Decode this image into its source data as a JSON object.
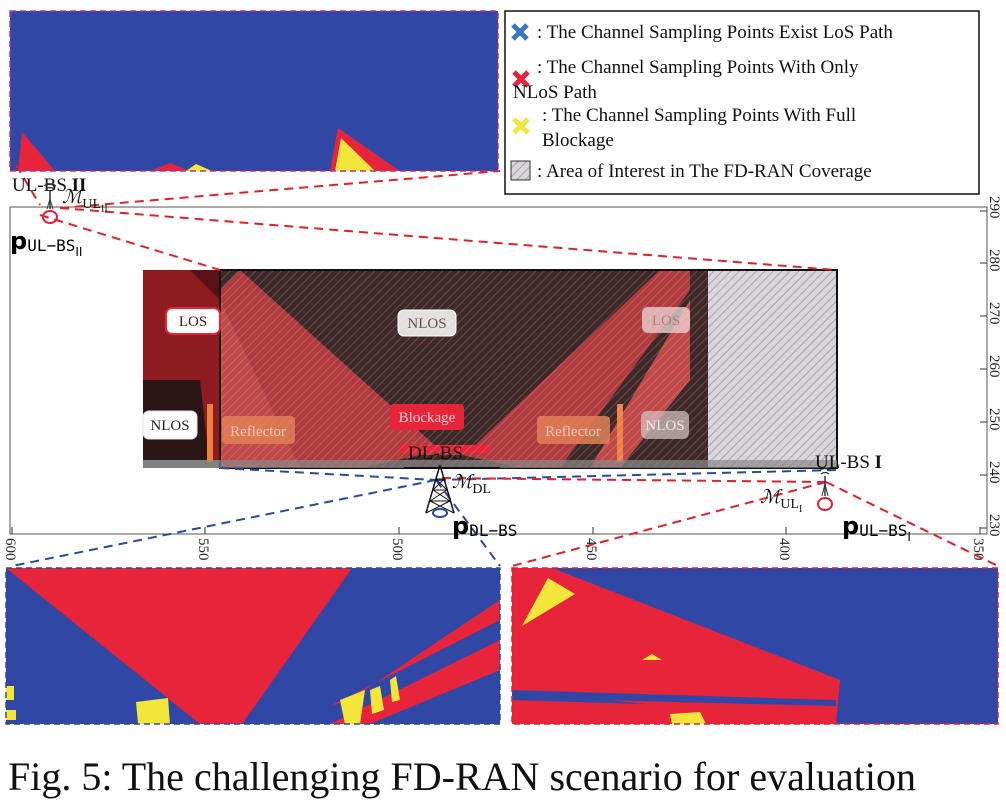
{
  "legend": {
    "items": [
      {
        "lines": [
          ": The Channel Sampling Points Exist LoS Path"
        ],
        "marker": "cross-icon",
        "color": "#3b78c8"
      },
      {
        "lines": [
          ": The Channel Sampling Points With Only",
          "NLoS Path"
        ],
        "marker": "cross-icon",
        "color": "#e8243a"
      },
      {
        "lines": [
          ": The Channel Sampling Points With Full",
          "Blockage"
        ],
        "marker": "cross-icon",
        "color": "#f2e63a"
      },
      {
        "lines": [
          ": Area of Interest in The FD-RAN Coverage"
        ],
        "marker": "hatched-square-icon",
        "color": "#d8d0d8"
      }
    ]
  },
  "axes": {
    "right_ticks": [
      "290",
      "280",
      "270",
      "260",
      "250",
      "240",
      "230"
    ],
    "bottom_ticks": [
      "600",
      "550",
      "500",
      "450",
      "400",
      "350"
    ]
  },
  "regions": {
    "los_left": "LOS",
    "nlos_center": "NLOS",
    "los_right": "LOS",
    "nlos_left": "NLOS",
    "reflector_left": "Reflector",
    "blockage": "Blockage",
    "reflector_right": "Reflector",
    "nlos_right": "NLOS"
  },
  "stations": {
    "ul2": {
      "name": "UL-BS ",
      "roman": "II",
      "set": "ℳ",
      "set_sub": "UL",
      "set_subsub": "II",
      "pos": "p",
      "pos_sub": "UL−BS",
      "pos_subsub": "II"
    },
    "dl": {
      "name": "DL-BS",
      "set": "ℳ",
      "set_sub": "DL",
      "pos": "p",
      "pos_sub": "DL−BS"
    },
    "ul1": {
      "name": "UL-BS ",
      "roman": "I",
      "set": "ℳ",
      "set_sub": "UL",
      "set_subsub": "I",
      "pos": "p",
      "pos_sub": "UL−BS",
      "pos_subsub": "I"
    }
  },
  "colors": {
    "los_blue": "#3147a6",
    "nlos_red": "#e8243a",
    "blockage_yellow": "#f2e63a",
    "dark_region": "#3f2828",
    "link_red": "#e0202e",
    "link_blue": "#2a4a9a"
  },
  "caption": "Fig. 5: The challenging FD-RAN scenario for evaluation"
}
